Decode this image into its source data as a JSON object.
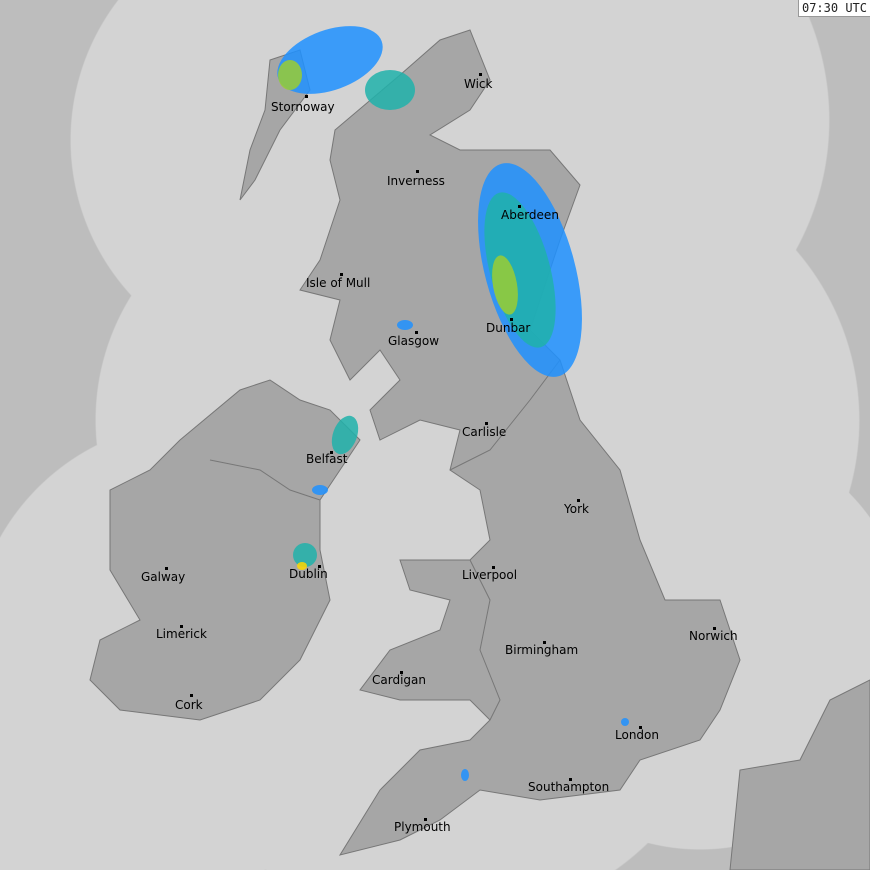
{
  "timestamp": "07:30 UTC",
  "colors": {
    "outside_coverage": "#bdbdbd",
    "coverage_sea": "#d3d3d3",
    "land": "#a6a6a6",
    "land_border": "#777777",
    "rain_light": "#1e90ff",
    "rain_moderate": "#20b2aa",
    "rain_heavy": "#9acd32",
    "rain_very_heavy": "#ffd700"
  },
  "cities": [
    {
      "name": "Wick"
    },
    {
      "name": "Stornoway"
    },
    {
      "name": "Inverness"
    },
    {
      "name": "Aberdeen"
    },
    {
      "name": "Isle of Mull"
    },
    {
      "name": "Glasgow"
    },
    {
      "name": "Dunbar"
    },
    {
      "name": "Carlisle"
    },
    {
      "name": "Belfast"
    },
    {
      "name": "York"
    },
    {
      "name": "Dublin"
    },
    {
      "name": "Galway"
    },
    {
      "name": "Liverpool"
    },
    {
      "name": "Norwich"
    },
    {
      "name": "Limerick"
    },
    {
      "name": "Birmingham"
    },
    {
      "name": "Cardigan"
    },
    {
      "name": "Cork"
    },
    {
      "name": "London"
    },
    {
      "name": "Southampton"
    },
    {
      "name": "Plymouth"
    }
  ]
}
